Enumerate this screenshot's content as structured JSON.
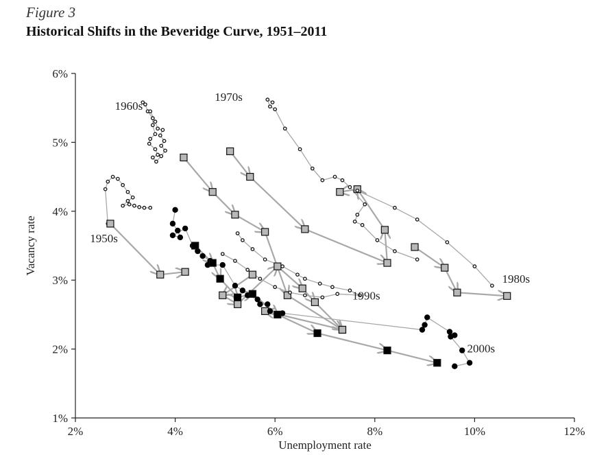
{
  "figure": {
    "label": "Figure 3",
    "title": "Historical Shifts in the Beveridge Curve, 1951–2011"
  },
  "colors": {
    "axis": "#222222",
    "path": "#a8a8a8",
    "marker_gray": "#b8b8b8",
    "marker_black": "#000000"
  },
  "chart_data": {
    "type": "scatter",
    "title": "Historical Shifts in the Beveridge Curve, 1951–2011",
    "xlabel": "Unemployment rate",
    "ylabel": "Vacancy rate",
    "xlim": [
      2,
      12
    ],
    "ylim": [
      1,
      6
    ],
    "x_ticks": [
      2,
      4,
      6,
      8,
      10,
      12
    ],
    "x_tick_labels": [
      "2%",
      "4%",
      "6%",
      "8%",
      "10%",
      "12%"
    ],
    "y_ticks": [
      1,
      2,
      3,
      4,
      5,
      6
    ],
    "y_tick_labels": [
      "1%",
      "2%",
      "3%",
      "4%",
      "5%",
      "6%"
    ],
    "grid": false,
    "series": [
      {
        "name": "1950s",
        "marker": "small-circle",
        "annual": [
          [
            2.7,
            3.82
          ],
          [
            3.7,
            3.08
          ],
          [
            4.2,
            3.12
          ]
        ],
        "monthly": [
          [
            2.65,
            3.82
          ],
          [
            2.6,
            4.32
          ],
          [
            2.65,
            4.43
          ],
          [
            2.75,
            4.5
          ],
          [
            2.85,
            4.47
          ],
          [
            2.95,
            4.38
          ],
          [
            3.05,
            4.28
          ],
          [
            3.15,
            4.2
          ],
          [
            3.05,
            4.15
          ],
          [
            2.95,
            4.08
          ],
          [
            3.08,
            4.1
          ],
          [
            3.18,
            4.08
          ],
          [
            3.28,
            4.06
          ],
          [
            3.38,
            4.05
          ],
          [
            3.5,
            4.05
          ]
        ]
      },
      {
        "name": "1960s",
        "marker": "small-circle",
        "annual": [
          [
            4.17,
            4.78
          ],
          [
            4.75,
            4.28
          ],
          [
            5.2,
            3.95
          ],
          [
            5.8,
            3.7
          ],
          [
            6.25,
            2.78
          ],
          [
            7.35,
            2.28
          ]
        ],
        "monthly": [
          [
            3.35,
            5.58
          ],
          [
            3.4,
            5.55
          ],
          [
            3.45,
            5.45
          ],
          [
            3.55,
            5.35
          ],
          [
            3.55,
            5.25
          ],
          [
            3.6,
            5.12
          ],
          [
            3.5,
            5.05
          ],
          [
            3.48,
            4.98
          ],
          [
            3.6,
            4.9
          ],
          [
            3.65,
            4.82
          ],
          [
            3.55,
            4.78
          ],
          [
            3.62,
            4.72
          ],
          [
            3.72,
            4.8
          ],
          [
            3.8,
            4.88
          ],
          [
            3.72,
            4.95
          ],
          [
            3.78,
            5.02
          ],
          [
            3.7,
            5.1
          ],
          [
            3.75,
            5.18
          ],
          [
            3.65,
            5.2
          ],
          [
            3.6,
            5.3
          ],
          [
            3.5,
            5.45
          ]
        ]
      },
      {
        "name": "1970s",
        "marker": "small-circle",
        "annual": [
          [
            5.1,
            4.87
          ],
          [
            5.5,
            4.5
          ],
          [
            6.6,
            3.74
          ],
          [
            8.25,
            3.25
          ],
          [
            8.2,
            3.73
          ],
          [
            7.65,
            4.32
          ],
          [
            7.3,
            4.28
          ]
        ],
        "monthly": [
          [
            5.95,
            5.58
          ],
          [
            5.85,
            5.62
          ],
          [
            5.9,
            5.52
          ],
          [
            6.0,
            5.48
          ],
          [
            6.2,
            5.2
          ],
          [
            6.5,
            4.9
          ],
          [
            6.75,
            4.62
          ],
          [
            6.95,
            4.45
          ],
          [
            7.2,
            4.5
          ],
          [
            7.35,
            4.45
          ],
          [
            7.5,
            4.35
          ],
          [
            7.8,
            4.1
          ],
          [
            7.65,
            3.95
          ],
          [
            7.6,
            3.85
          ],
          [
            7.75,
            3.8
          ],
          [
            8.05,
            3.58
          ],
          [
            8.4,
            3.42
          ],
          [
            8.85,
            3.3
          ]
        ]
      },
      {
        "name": "1980s",
        "marker": "small-circle",
        "annual": [
          [
            8.8,
            3.48
          ],
          [
            9.4,
            3.18
          ],
          [
            9.65,
            2.82
          ],
          [
            10.65,
            2.77
          ]
        ],
        "monthly": [
          [
            7.65,
            4.3
          ],
          [
            8.4,
            4.05
          ],
          [
            8.85,
            3.88
          ],
          [
            9.45,
            3.55
          ],
          [
            10.0,
            3.2
          ],
          [
            10.35,
            2.92
          ]
        ]
      },
      {
        "name": "1990s",
        "marker": "small-circle",
        "annual": [
          [
            5.55,
            3.08
          ],
          [
            4.95,
            2.78
          ],
          [
            5.25,
            2.65
          ],
          [
            6.05,
            3.2
          ],
          [
            6.55,
            2.88
          ],
          [
            6.8,
            2.68
          ],
          [
            7.35,
            2.28
          ],
          [
            5.8,
            2.55
          ]
        ],
        "monthly": [
          [
            5.25,
            3.68
          ],
          [
            5.35,
            3.58
          ],
          [
            5.55,
            3.45
          ],
          [
            5.8,
            3.3
          ],
          [
            6.15,
            3.2
          ],
          [
            6.45,
            3.08
          ],
          [
            6.6,
            3.02
          ],
          [
            6.9,
            2.95
          ],
          [
            7.15,
            2.9
          ],
          [
            7.5,
            2.85
          ],
          [
            7.7,
            2.78
          ],
          [
            7.25,
            2.8
          ],
          [
            6.95,
            2.75
          ],
          [
            6.6,
            2.78
          ],
          [
            6.3,
            2.82
          ],
          [
            6.0,
            2.9
          ],
          [
            5.7,
            3.02
          ],
          [
            5.45,
            3.15
          ],
          [
            5.2,
            3.28
          ],
          [
            4.95,
            3.38
          ]
        ]
      },
      {
        "name": "2000s",
        "marker": "black",
        "annual": [
          [
            4.4,
            3.5
          ],
          [
            4.75,
            3.25
          ],
          [
            4.9,
            3.02
          ],
          [
            5.25,
            2.75
          ],
          [
            5.55,
            2.8
          ],
          [
            6.05,
            2.5
          ],
          [
            6.85,
            2.23
          ],
          [
            8.25,
            1.98
          ],
          [
            9.25,
            1.8
          ]
        ],
        "monthly": [
          [
            4.0,
            4.02
          ],
          [
            3.95,
            3.82
          ],
          [
            4.05,
            3.72
          ],
          [
            4.1,
            3.62
          ],
          [
            3.95,
            3.65
          ],
          [
            4.2,
            3.75
          ],
          [
            4.35,
            3.5
          ],
          [
            4.45,
            3.42
          ],
          [
            4.55,
            3.35
          ],
          [
            4.7,
            3.28
          ],
          [
            4.65,
            3.22
          ],
          [
            4.95,
            3.22
          ],
          [
            5.2,
            2.92
          ],
          [
            5.35,
            2.85
          ],
          [
            5.45,
            2.78
          ],
          [
            5.65,
            2.72
          ],
          [
            5.7,
            2.65
          ],
          [
            5.85,
            2.65
          ],
          [
            5.9,
            2.55
          ],
          [
            6.15,
            2.52
          ],
          [
            8.95,
            2.28
          ],
          [
            9.0,
            2.35
          ],
          [
            9.05,
            2.46
          ],
          [
            9.5,
            2.25
          ],
          [
            9.6,
            2.2
          ],
          [
            9.52,
            2.18
          ],
          [
            9.75,
            1.98
          ],
          [
            9.9,
            1.8
          ],
          [
            9.6,
            1.75
          ]
        ]
      }
    ],
    "annotations": [
      "1950s",
      "1960s",
      "1970s",
      "1980s",
      "1990s",
      "2000s"
    ]
  }
}
